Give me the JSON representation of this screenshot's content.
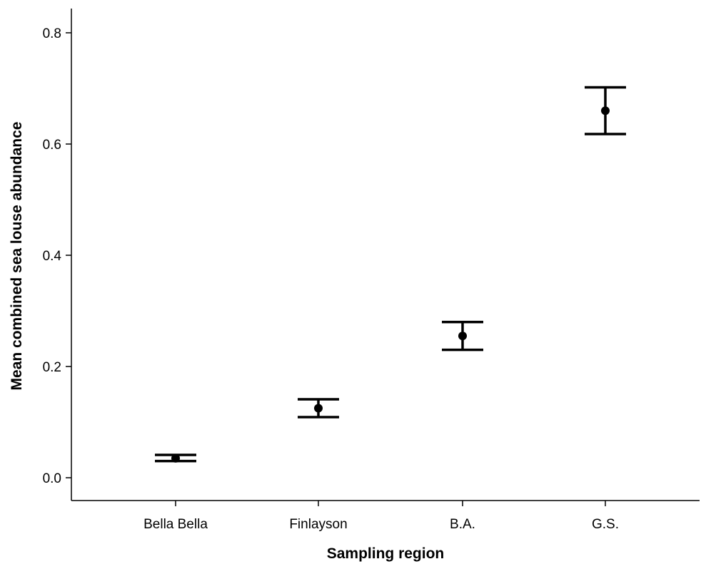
{
  "chart_data": {
    "type": "scatter",
    "subtype": "errorbar",
    "title": "",
    "xlabel": "Sampling region",
    "ylabel": "Mean combined sea louse abundance",
    "categories": [
      "Bella Bella",
      "Finlayson",
      "B.A.",
      "G.S."
    ],
    "series": [
      {
        "means": [
          0.035,
          0.125,
          0.255,
          0.66
        ],
        "lower": [
          0.03,
          0.109,
          0.23,
          0.618
        ],
        "upper": [
          0.041,
          0.141,
          0.28,
          0.702
        ]
      }
    ],
    "ylim": [
      -0.045,
      0.845
    ],
    "yticks": [
      0.0,
      0.2,
      0.4,
      0.6,
      0.8
    ],
    "ytick_labels": [
      "0.0",
      "0.2",
      "0.4",
      "0.6",
      "0.8"
    ],
    "grid": false,
    "legend": "none",
    "colors": {
      "marks": "#000000",
      "axis": "#000000",
      "background": "#ffffff"
    }
  }
}
